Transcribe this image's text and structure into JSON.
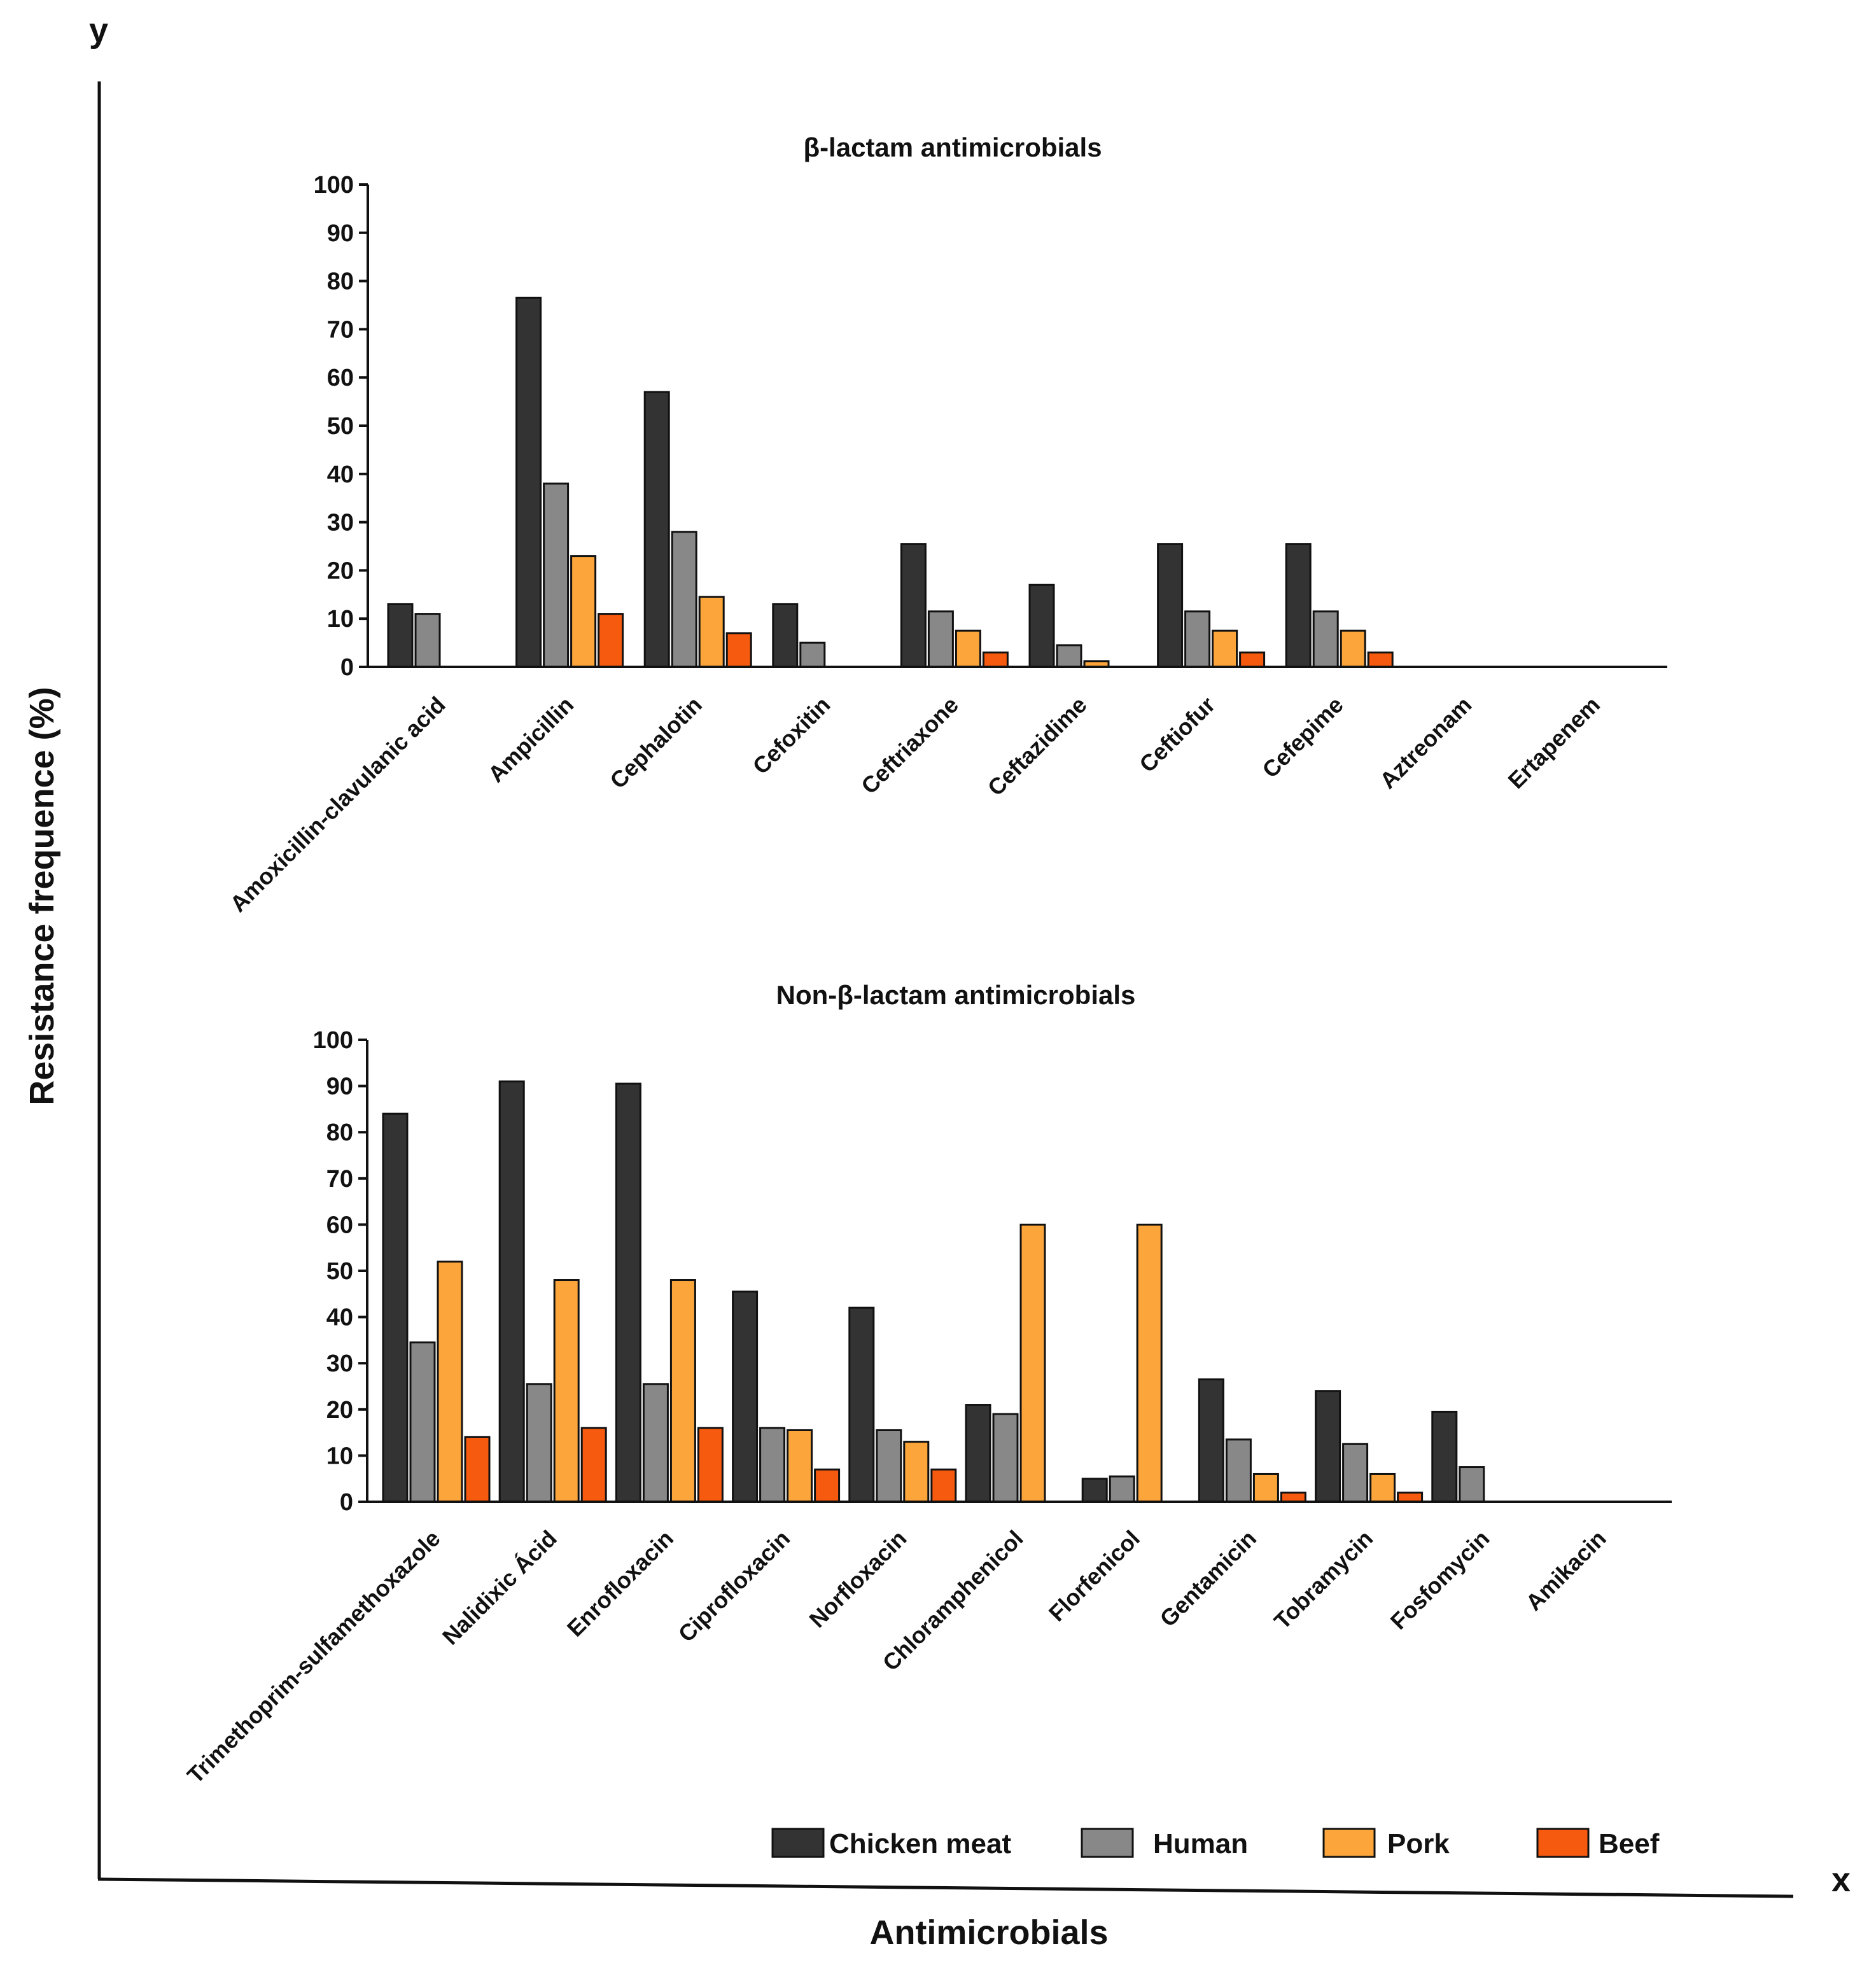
{
  "figure": {
    "y_axis_letter": "y",
    "x_axis_letter": "x",
    "ylabel": "Resistance frequence (%)",
    "xlabel": "Antimicrobials"
  },
  "colors": {
    "Chicken meat": "#333333",
    "Human": "#888888",
    "Pork": "#fba53a",
    "Beef": "#f65a0e"
  },
  "legend": [
    "Chicken meat",
    "Human",
    "Pork",
    "Beef"
  ],
  "chart_data": [
    {
      "type": "bar",
      "title": "β-lactam antimicrobials",
      "ylim": [
        0,
        100
      ],
      "yticks": [
        0,
        10,
        20,
        30,
        40,
        50,
        60,
        70,
        80,
        90,
        100
      ],
      "categories": [
        "Amoxicillin-clavulanic acid",
        "Ampicillin",
        "Cephalotin",
        "Cefoxitin",
        "Ceftriaxone",
        "Ceftazidime",
        "Ceftiofur",
        "Cefepime",
        "Aztreonam",
        "Ertapenem"
      ],
      "series": [
        {
          "name": "Chicken meat",
          "values": [
            13,
            76.5,
            57,
            13,
            25.5,
            17,
            25.5,
            25.5,
            0,
            0
          ]
        },
        {
          "name": "Human",
          "values": [
            11,
            38,
            28,
            5,
            11.5,
            4.5,
            11.5,
            11.5,
            0,
            0
          ]
        },
        {
          "name": "Pork",
          "values": [
            0,
            23,
            14.5,
            0,
            7.5,
            1.2,
            7.5,
            7.5,
            0,
            0
          ]
        },
        {
          "name": "Beef",
          "values": [
            0,
            11,
            7,
            0,
            3,
            0,
            3,
            3,
            0,
            0
          ]
        }
      ]
    },
    {
      "type": "bar",
      "title": "Non-β-lactam antimicrobials",
      "ylim": [
        0,
        100
      ],
      "yticks": [
        0,
        10,
        20,
        30,
        40,
        50,
        60,
        70,
        80,
        90,
        100
      ],
      "categories": [
        "Trimethoprim-sulfamethoxazole",
        "Nalidixic Ácid",
        "Enrofloxacin",
        "Ciprofloxacin",
        "Norfloxacin",
        "Chloramphenicol",
        "Florfenicol",
        "Gentamicin",
        "Tobramycin",
        "Fosfomycin",
        "Amikacin"
      ],
      "series": [
        {
          "name": "Chicken meat",
          "values": [
            84,
            91,
            90.5,
            45.5,
            42,
            21,
            5,
            26.5,
            24,
            19.5,
            0
          ]
        },
        {
          "name": "Human",
          "values": [
            34.5,
            25.5,
            25.5,
            16,
            15.5,
            19,
            5.5,
            13.5,
            12.5,
            7.5,
            0
          ]
        },
        {
          "name": "Pork",
          "values": [
            52,
            48,
            48,
            15.5,
            13,
            60,
            60,
            6,
            6,
            0,
            0
          ]
        },
        {
          "name": "Beef",
          "values": [
            14,
            16,
            16,
            7,
            7,
            0,
            0,
            2,
            2,
            0,
            0
          ]
        }
      ]
    }
  ]
}
